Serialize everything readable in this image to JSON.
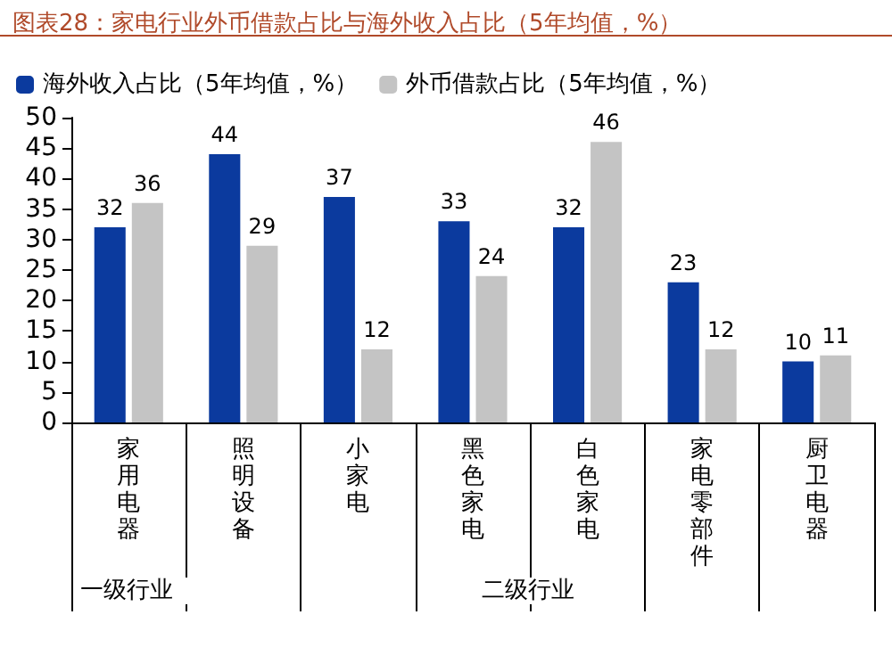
{
  "chart_data": {
    "type": "bar",
    "title": "图表28：家电行业外币借款占比与海外收入占比（5年均值，%）",
    "categories": [
      "家用电器",
      "照明设备",
      "小家电",
      "黑色家电",
      "白色家电",
      "家电零部件",
      "厨卫电器"
    ],
    "series": [
      {
        "name": "海外收入占比（5年均值，%）",
        "color": "#0b3a9e",
        "values": [
          32,
          44,
          37,
          33,
          32,
          23,
          10
        ]
      },
      {
        "name": "外币借款占比（5年均值，%）",
        "color": "#c4c4c4",
        "values": [
          36,
          29,
          12,
          24,
          46,
          12,
          11
        ]
      }
    ],
    "ylim": [
      0,
      50
    ],
    "yticks": [
      0,
      5,
      10,
      15,
      20,
      25,
      30,
      35,
      40,
      45,
      50
    ],
    "grid": false,
    "legend": "top",
    "data_labels": true,
    "annotations": [
      "一级行业",
      "二级行业"
    ]
  }
}
